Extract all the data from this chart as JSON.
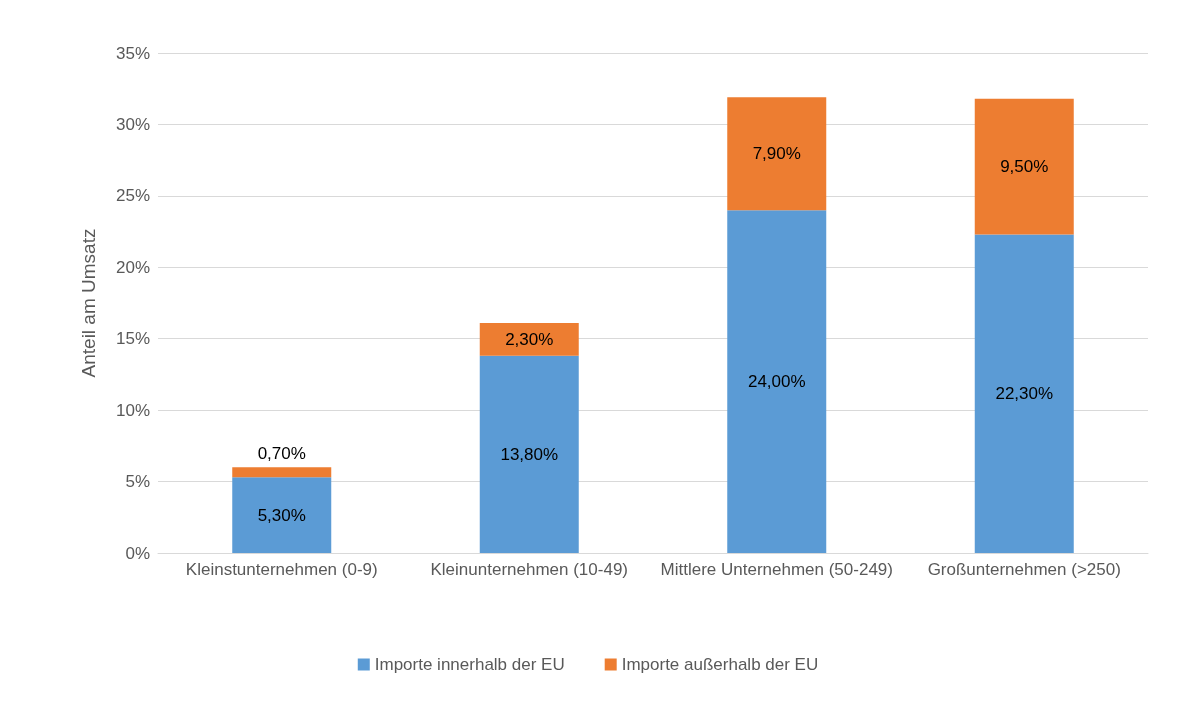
{
  "chart_data": {
    "type": "bar",
    "stacked": true,
    "ylabel": "Anteil am Umsatz",
    "categories": [
      "Kleinstunternehmen (0-9)",
      "Kleinunternehmen (10-49)",
      "Mittlere Unternehmen (50-249)",
      "Großunternehmen (>250)"
    ],
    "series": [
      {
        "name": "Importe innerhalb der EU",
        "color": "#5b9bd5",
        "values": [
          5.3,
          13.8,
          24.0,
          22.3
        ],
        "value_labels": [
          "5,30%",
          "13,80%",
          "24,00%",
          "22,30%"
        ]
      },
      {
        "name": "Importe außerhalb der EU",
        "color": "#ed7d31",
        "values": [
          0.7,
          2.3,
          7.9,
          9.5
        ],
        "value_labels": [
          "0,70%",
          "2,30%",
          "7,90%",
          "9,50%"
        ]
      }
    ],
    "ylim": [
      0,
      35
    ],
    "yticks": [
      {
        "value": 0,
        "label": "0%"
      },
      {
        "value": 5,
        "label": "5%"
      },
      {
        "value": 10,
        "label": "10%"
      },
      {
        "value": 15,
        "label": "15%"
      },
      {
        "value": 20,
        "label": "20%"
      },
      {
        "value": 25,
        "label": "25%"
      },
      {
        "value": 30,
        "label": "30%"
      },
      {
        "value": 35,
        "label": "35%"
      }
    ],
    "grid": "y",
    "legend": "bottom"
  }
}
